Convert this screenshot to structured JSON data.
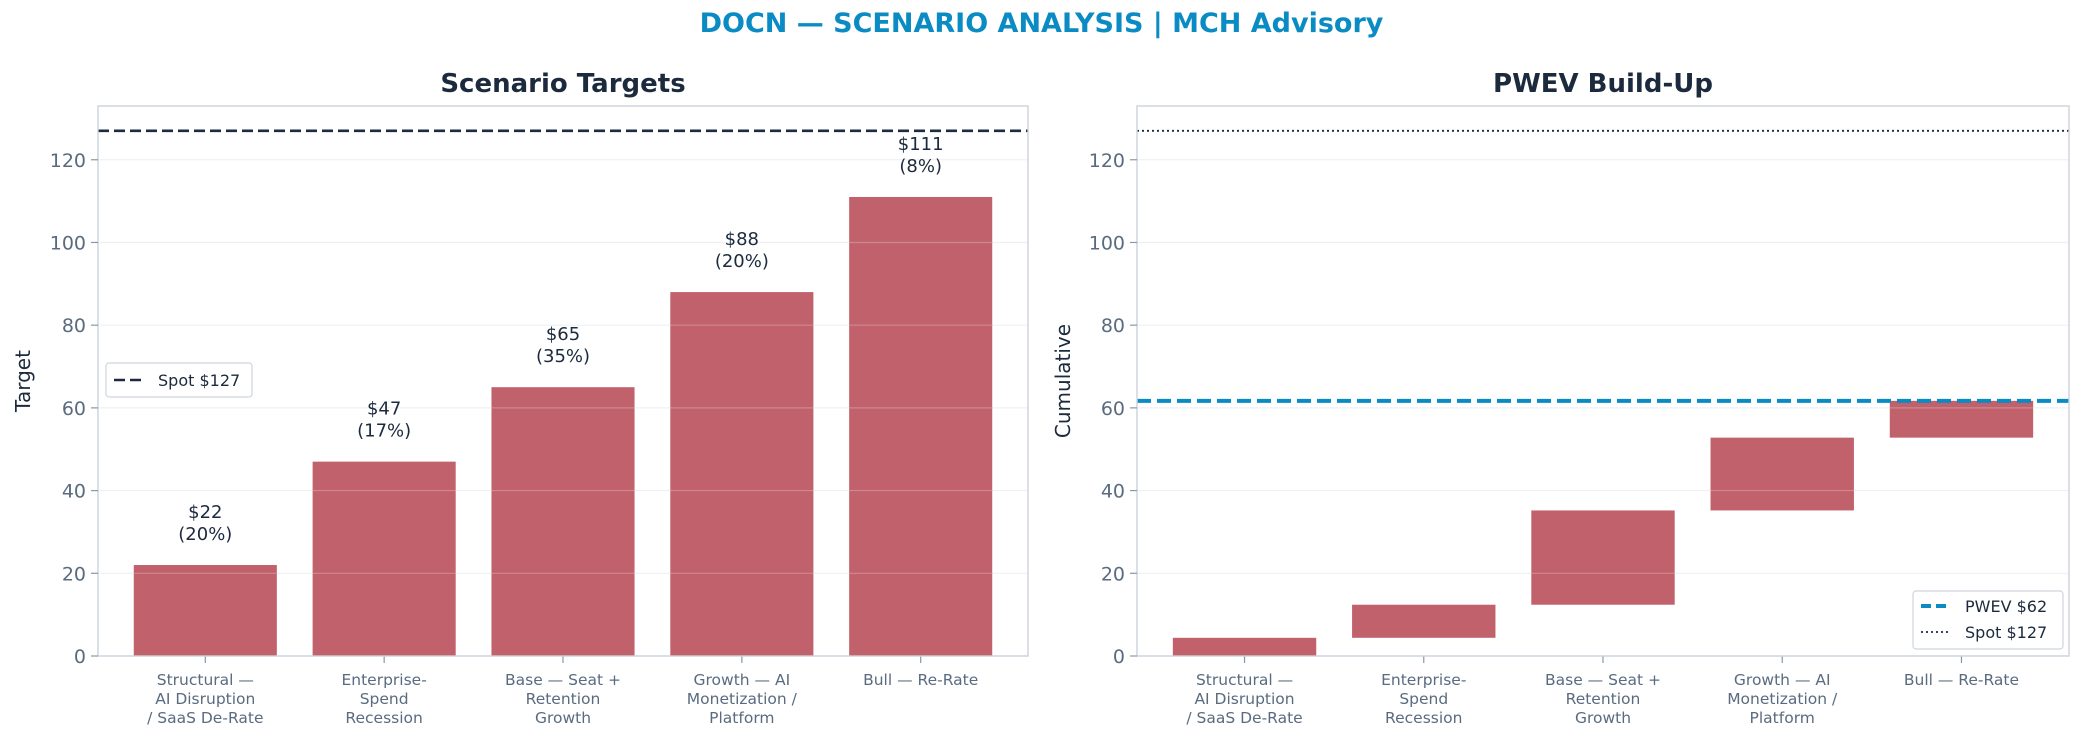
{
  "title": "DOCN — SCENARIO ANALYSIS | MCH Advisory",
  "colors": {
    "bar": "#c0616b",
    "spot": "#1b2a3d",
    "pwev": "#0a8bc4",
    "title": "#0a8bc4"
  },
  "chart_data": [
    {
      "type": "bar",
      "title": "Scenario Targets",
      "xlabel": "",
      "ylabel": "Target",
      "ylim": [
        0,
        133
      ],
      "yticks": [
        0,
        20,
        40,
        60,
        80,
        100,
        120
      ],
      "grid": true,
      "legend_position": "center-left",
      "categories": [
        [
          "Structural —",
          "AI Disruption",
          "/ SaaS De-Rate"
        ],
        [
          "Enterprise-",
          "Spend",
          "Recession"
        ],
        [
          "Base — Seat +",
          "Retention",
          "Growth"
        ],
        [
          "Growth — AI",
          "Monetization /",
          "Platform"
        ],
        [
          "Bull — Re-Rate"
        ]
      ],
      "values": [
        22,
        47,
        65,
        88,
        111
      ],
      "data_labels": [
        [
          "$22",
          "(20%)"
        ],
        [
          "$47",
          "(17%)"
        ],
        [
          "$65",
          "(35%)"
        ],
        [
          "$88",
          "(20%)"
        ],
        [
          "$111",
          "(8%)"
        ]
      ],
      "reference_lines": [
        {
          "name": "Spot $127",
          "value": 127,
          "style": "dashed"
        }
      ]
    },
    {
      "type": "waterfall",
      "title": "PWEV Build-Up",
      "xlabel": "",
      "ylabel": "Cumulative",
      "ylim": [
        0,
        133
      ],
      "yticks": [
        0,
        20,
        40,
        60,
        80,
        100,
        120
      ],
      "grid": true,
      "legend_position": "bottom-right",
      "categories": [
        [
          "Structural —",
          "AI Disruption",
          "/ SaaS De-Rate"
        ],
        [
          "Enterprise-",
          "Spend",
          "Recession"
        ],
        [
          "Base — Seat +",
          "Retention",
          "Growth"
        ],
        [
          "Growth — AI",
          "Monetization /",
          "Platform"
        ],
        [
          "Bull — Re-Rate"
        ]
      ],
      "bars": [
        {
          "start": 0,
          "end": 4.4
        },
        {
          "start": 4.4,
          "end": 12.4
        },
        {
          "start": 12.4,
          "end": 35.2
        },
        {
          "start": 35.2,
          "end": 52.8
        },
        {
          "start": 52.8,
          "end": 61.7
        }
      ],
      "reference_lines": [
        {
          "name": "PWEV $62",
          "value": 61.7,
          "style": "dashed"
        },
        {
          "name": "Spot $127",
          "value": 127,
          "style": "dotted"
        }
      ]
    }
  ]
}
